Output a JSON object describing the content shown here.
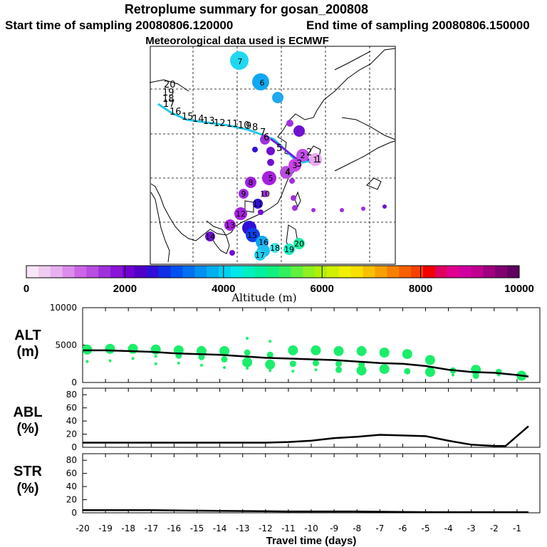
{
  "header": {
    "title": "Retroplume summary for gosan_200808",
    "start_label": "Start time of sampling 20080806.120000",
    "end_label": "End time of sampling 20080806.150000",
    "met_label": "Meteorological data used is ECMWF"
  },
  "colorbar": {
    "ticks": [
      "0",
      "2000",
      "4000",
      "6000",
      "8000",
      "10000"
    ],
    "title": "Altitude (m)",
    "min": 0,
    "max": 10000,
    "colors": [
      "#f7e6f7",
      "#f0ccf0",
      "#e8b0f0",
      "#dc8cec",
      "#cc66e6",
      "#b84de0",
      "#a030dc",
      "#8a14d8",
      "#7000d0",
      "#5000c8",
      "#3010d8",
      "#1030e8",
      "#0050f0",
      "#0070f0",
      "#0090f0",
      "#00b0f0",
      "#00d0f0",
      "#00e8e8",
      "#00f0c0",
      "#00f0a0",
      "#10f080",
      "#30f060",
      "#60f040",
      "#90f020",
      "#b0f000",
      "#d0f000",
      "#f0f000",
      "#f8e000",
      "#f8c000",
      "#f8a000",
      "#f88000",
      "#f86000",
      "#f84000",
      "#f00000",
      "#e00060",
      "#e00090",
      "#d000a0",
      "#c00090",
      "#a00080",
      "#800070",
      "#600060"
    ]
  },
  "map": {
    "trajectory_labels": [
      "1",
      "2",
      "3",
      "4",
      "5",
      "6",
      "7",
      "8",
      "9",
      "10",
      "11",
      "12",
      "13",
      "14",
      "15",
      "16",
      "17",
      "18",
      "19",
      "20"
    ],
    "plume_labels": [
      "1",
      "2",
      "3",
      "4",
      "5",
      "6",
      "7",
      "8",
      "9",
      "10",
      "11",
      "12",
      "13",
      "14",
      "15",
      "16",
      "17",
      "18",
      "19",
      "20"
    ],
    "plume_colors": [
      "#e8a8f0",
      "#cc40e8",
      "#d060ec",
      "#c050e8",
      "#a820e0",
      "#7010d0",
      "#20c8f0",
      "#10a8f0",
      "#20b0f0",
      "#40e8e8"
    ]
  },
  "chart_data": [
    {
      "type": "scatter",
      "panel": "ALT",
      "ylabel": "ALT\n(m)",
      "ylabel_line1": "ALT",
      "ylabel_line2": "(m)",
      "ylim": [
        0,
        10000
      ],
      "yticks": [
        "10000",
        "5000",
        "0"
      ],
      "xlim": [
        -20,
        0
      ],
      "mean_line": {
        "x": [
          -20,
          -19,
          -18,
          -17,
          -16,
          -15,
          -14,
          -13,
          -12,
          -11,
          -10,
          -9,
          -8,
          -7,
          -6,
          -5,
          -4,
          -3,
          -2,
          -1,
          -0.5
        ],
        "y": [
          4300,
          4300,
          4200,
          4100,
          3900,
          3800,
          3700,
          3500,
          3300,
          3200,
          3100,
          3000,
          2800,
          2600,
          2500,
          2200,
          1700,
          1400,
          1300,
          1000,
          800
        ]
      },
      "points": [
        {
          "x": -19.8,
          "y": 4400,
          "size": "large"
        },
        {
          "x": -19.8,
          "y": 2800,
          "size": "small"
        },
        {
          "x": -18.8,
          "y": 4500,
          "size": "large"
        },
        {
          "x": -18.8,
          "y": 2900,
          "size": "small"
        },
        {
          "x": -17.8,
          "y": 4500,
          "size": "large"
        },
        {
          "x": -17.8,
          "y": 3200,
          "size": "small"
        },
        {
          "x": -16.8,
          "y": 4400,
          "size": "large"
        },
        {
          "x": -16.8,
          "y": 3500,
          "size": "small"
        },
        {
          "x": -16.8,
          "y": 2500,
          "size": "small"
        },
        {
          "x": -15.8,
          "y": 4300,
          "size": "large"
        },
        {
          "x": -15.8,
          "y": 3600,
          "size": "medium"
        },
        {
          "x": -15.8,
          "y": 2600,
          "size": "small"
        },
        {
          "x": -14.8,
          "y": 4200,
          "size": "large"
        },
        {
          "x": -14.8,
          "y": 3400,
          "size": "medium"
        },
        {
          "x": -14.8,
          "y": 2300,
          "size": "small"
        },
        {
          "x": -13.8,
          "y": 4200,
          "size": "large"
        },
        {
          "x": -13.8,
          "y": 3100,
          "size": "medium"
        },
        {
          "x": -13.8,
          "y": 2000,
          "size": "small"
        },
        {
          "x": -12.8,
          "y": 5900,
          "size": "small"
        },
        {
          "x": -12.8,
          "y": 4000,
          "size": "medium"
        },
        {
          "x": -12.8,
          "y": 2700,
          "size": "large"
        },
        {
          "x": -12.8,
          "y": 1900,
          "size": "small"
        },
        {
          "x": -11.8,
          "y": 5500,
          "size": "small"
        },
        {
          "x": -11.8,
          "y": 3700,
          "size": "medium"
        },
        {
          "x": -11.8,
          "y": 2400,
          "size": "large"
        },
        {
          "x": -11.8,
          "y": 1600,
          "size": "small"
        },
        {
          "x": -10.8,
          "y": 4300,
          "size": "large"
        },
        {
          "x": -10.8,
          "y": 2500,
          "size": "medium"
        },
        {
          "x": -10.8,
          "y": 1500,
          "size": "small"
        },
        {
          "x": -9.8,
          "y": 4300,
          "size": "large"
        },
        {
          "x": -9.8,
          "y": 2600,
          "size": "medium"
        },
        {
          "x": -9.8,
          "y": 1700,
          "size": "small"
        },
        {
          "x": -8.8,
          "y": 4200,
          "size": "large"
        },
        {
          "x": -8.8,
          "y": 2500,
          "size": "medium"
        },
        {
          "x": -8.8,
          "y": 1700,
          "size": "medium"
        },
        {
          "x": -7.8,
          "y": 4200,
          "size": "large"
        },
        {
          "x": -7.8,
          "y": 2400,
          "size": "medium"
        },
        {
          "x": -7.8,
          "y": 1600,
          "size": "large"
        },
        {
          "x": -6.8,
          "y": 4000,
          "size": "large"
        },
        {
          "x": -6.8,
          "y": 1800,
          "size": "large"
        },
        {
          "x": -5.8,
          "y": 3800,
          "size": "large"
        },
        {
          "x": -5.8,
          "y": 1500,
          "size": "medium"
        },
        {
          "x": -4.8,
          "y": 3000,
          "size": "large"
        },
        {
          "x": -4.8,
          "y": 1400,
          "size": "large"
        },
        {
          "x": -3.8,
          "y": 1600,
          "size": "medium"
        },
        {
          "x": -3.8,
          "y": 1000,
          "size": "small"
        },
        {
          "x": -2.8,
          "y": 1700,
          "size": "large"
        },
        {
          "x": -2.8,
          "y": 900,
          "size": "medium"
        },
        {
          "x": -1.8,
          "y": 1400,
          "size": "medium"
        },
        {
          "x": -1.8,
          "y": 1000,
          "size": "small"
        },
        {
          "x": -0.8,
          "y": 900,
          "size": "large"
        }
      ]
    },
    {
      "type": "line",
      "panel": "ABL",
      "ylabel_line1": "ABL",
      "ylabel_line2": "(%)",
      "ylim": [
        0,
        90
      ],
      "yticks": [
        "80",
        "60",
        "40",
        "20",
        "0"
      ],
      "x": [
        -20,
        -19,
        -18,
        -17,
        -16,
        -15,
        -14,
        -13,
        -12,
        -11,
        -10,
        -9,
        -8,
        -7,
        -6,
        -5,
        -4,
        -3,
        -2,
        -1.5,
        -0.5
      ],
      "y": [
        7,
        7,
        7,
        7,
        7,
        7,
        7,
        7,
        7,
        8,
        10,
        14,
        16,
        19,
        18,
        17,
        10,
        4,
        2,
        2,
        32
      ]
    },
    {
      "type": "line",
      "panel": "STR",
      "ylabel_line1": "STR",
      "ylabel_line2": "(%)",
      "ylim": [
        0,
        90
      ],
      "yticks": [
        "80",
        "60",
        "40",
        "20",
        "0"
      ],
      "x": [
        -20,
        -17,
        -14,
        -11,
        -8,
        -5,
        -2,
        -0.5
      ],
      "y": [
        4,
        4,
        3,
        2,
        2,
        1,
        1,
        1
      ]
    }
  ],
  "xaxis": {
    "ticks": [
      "-20",
      "-19",
      "-18",
      "-17",
      "-16",
      "-15",
      "-14",
      "-13",
      "-12",
      "-11",
      "-10",
      "-9",
      "-8",
      "-7",
      "-6",
      "-5",
      "-4",
      "-3",
      "-2",
      "-1"
    ],
    "label": "Travel time (days)"
  }
}
